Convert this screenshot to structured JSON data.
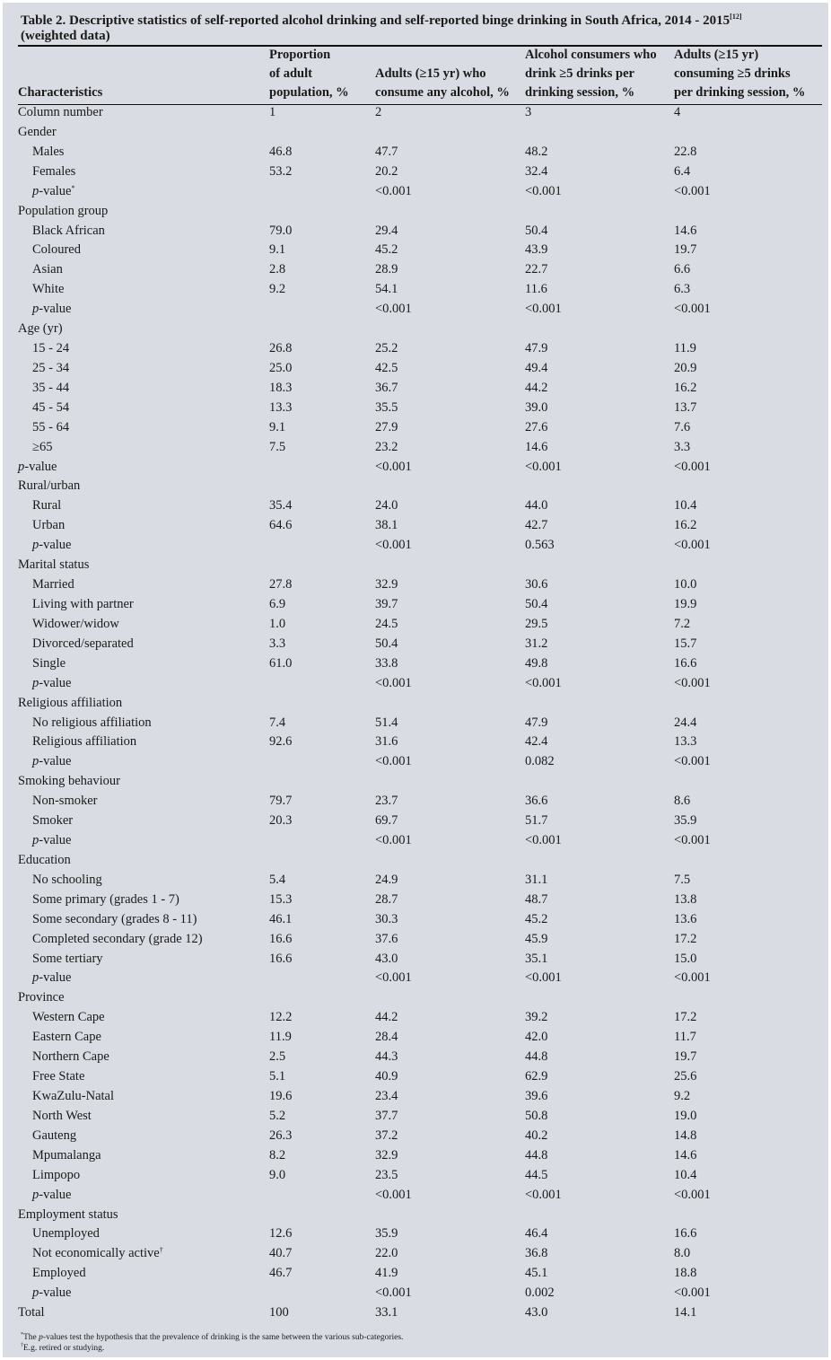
{
  "title": {
    "text": "Table 2. Descriptive statistics of self-reported alcohol drinking and self-reported binge drinking in South Africa, 2014 - 2015",
    "ref": "[12]",
    "line2": "(weighted data)"
  },
  "headers": {
    "characteristics": "Characteristics",
    "col1": [
      "Proportion",
      "of adult",
      "population, %"
    ],
    "col2": [
      "Adults (≥15 yr) who",
      "consume any alcohol, %"
    ],
    "col3": [
      "Alcohol consumers who",
      "drink ≥5 drinks per",
      "drinking session, %"
    ],
    "col4": [
      "Adults (≥15 yr)",
      "consuming ≥5 drinks",
      "per drinking session, %"
    ]
  },
  "rows": [
    {
      "label": "Column number",
      "v": [
        "1",
        "2",
        "3",
        "4"
      ]
    },
    {
      "label": "Gender",
      "v": [
        "",
        "",
        "",
        ""
      ]
    },
    {
      "label": "Males",
      "indent": true,
      "v": [
        "46.8",
        "47.7",
        "48.2",
        "22.8"
      ]
    },
    {
      "label": "Females",
      "indent": true,
      "v": [
        "53.2",
        "20.2",
        "32.4",
        "6.4"
      ]
    },
    {
      "label": "p-value",
      "sup": "*",
      "p": true,
      "indent": true,
      "v": [
        "",
        "<0.001",
        "<0.001",
        "<0.001"
      ]
    },
    {
      "label": "Population group",
      "v": [
        "",
        "",
        "",
        ""
      ]
    },
    {
      "label": "Black African",
      "indent": true,
      "v": [
        "79.0",
        "29.4",
        "50.4",
        "14.6"
      ]
    },
    {
      "label": "Coloured",
      "indent": true,
      "v": [
        "9.1",
        "45.2",
        "43.9",
        "19.7"
      ]
    },
    {
      "label": "Asian",
      "indent": true,
      "v": [
        "2.8",
        "28.9",
        "22.7",
        "6.6"
      ]
    },
    {
      "label": "White",
      "indent": true,
      "v": [
        "9.2",
        "54.1",
        "11.6",
        "6.3"
      ]
    },
    {
      "label": "p-value",
      "p": true,
      "indent": true,
      "v": [
        "",
        "<0.001",
        "<0.001",
        "<0.001"
      ]
    },
    {
      "label": "Age (yr)",
      "v": [
        "",
        "",
        "",
        ""
      ]
    },
    {
      "label": "15 - 24",
      "indent": true,
      "v": [
        "26.8",
        "25.2",
        "47.9",
        "11.9"
      ]
    },
    {
      "label": "25 - 34",
      "indent": true,
      "v": [
        "25.0",
        "42.5",
        "49.4",
        "20.9"
      ]
    },
    {
      "label": "35 - 44",
      "indent": true,
      "v": [
        "18.3",
        "36.7",
        "44.2",
        "16.2"
      ]
    },
    {
      "label": "45 - 54",
      "indent": true,
      "v": [
        "13.3",
        "35.5",
        "39.0",
        "13.7"
      ]
    },
    {
      "label": "55 - 64",
      "indent": true,
      "v": [
        "9.1",
        "27.9",
        "27.6",
        "7.6"
      ]
    },
    {
      "label": "≥65",
      "indent": true,
      "v": [
        "7.5",
        "23.2",
        "14.6",
        "3.3"
      ]
    },
    {
      "label": "p-value",
      "p": true,
      "v": [
        "",
        "<0.001",
        "<0.001",
        "<0.001"
      ]
    },
    {
      "label": "Rural/urban",
      "v": [
        "",
        "",
        "",
        ""
      ]
    },
    {
      "label": "Rural",
      "indent": true,
      "v": [
        "35.4",
        "24.0",
        "44.0",
        "10.4"
      ]
    },
    {
      "label": "Urban",
      "indent": true,
      "v": [
        "64.6",
        "38.1",
        "42.7",
        "16.2"
      ]
    },
    {
      "label": "p-value",
      "p": true,
      "indent": true,
      "v": [
        "",
        "<0.001",
        "0.563",
        "<0.001"
      ]
    },
    {
      "label": "Marital status",
      "v": [
        "",
        "",
        "",
        ""
      ]
    },
    {
      "label": "Married",
      "indent": true,
      "v": [
        "27.8",
        "32.9",
        "30.6",
        "10.0"
      ]
    },
    {
      "label": "Living with partner",
      "indent": true,
      "v": [
        "6.9",
        "39.7",
        "50.4",
        "19.9"
      ]
    },
    {
      "label": "Widower/widow",
      "indent": true,
      "v": [
        "1.0",
        "24.5",
        "29.5",
        "7.2"
      ]
    },
    {
      "label": "Divorced/separated",
      "indent": true,
      "v": [
        "3.3",
        "50.4",
        "31.2",
        "15.7"
      ]
    },
    {
      "label": "Single",
      "indent": true,
      "v": [
        "61.0",
        "33.8",
        "49.8",
        "16.6"
      ]
    },
    {
      "label": "p-value",
      "p": true,
      "indent": true,
      "v": [
        "",
        "<0.001",
        "<0.001",
        "<0.001"
      ]
    },
    {
      "label": "Religious affiliation",
      "v": [
        "",
        "",
        "",
        ""
      ]
    },
    {
      "label": "No religious affiliation",
      "indent": true,
      "v": [
        "7.4",
        "51.4",
        "47.9",
        "24.4"
      ]
    },
    {
      "label": "Religious affiliation",
      "indent": true,
      "v": [
        "92.6",
        "31.6",
        "42.4",
        "13.3"
      ]
    },
    {
      "label": "p-value",
      "p": true,
      "indent": true,
      "v": [
        "",
        "<0.001",
        "0.082",
        "<0.001"
      ]
    },
    {
      "label": "Smoking behaviour",
      "v": [
        "",
        "",
        "",
        ""
      ]
    },
    {
      "label": "Non-smoker",
      "indent": true,
      "v": [
        "79.7",
        "23.7",
        "36.6",
        "8.6"
      ]
    },
    {
      "label": "Smoker",
      "indent": true,
      "v": [
        "20.3",
        "69.7",
        "51.7",
        "35.9"
      ]
    },
    {
      "label": "p-value",
      "p": true,
      "indent": true,
      "v": [
        "",
        "<0.001",
        "<0.001",
        "<0.001"
      ]
    },
    {
      "label": "Education",
      "v": [
        "",
        "",
        "",
        ""
      ]
    },
    {
      "label": "No schooling",
      "indent": true,
      "v": [
        "5.4",
        "24.9",
        "31.1",
        "7.5"
      ]
    },
    {
      "label": "Some primary (grades 1 - 7)",
      "indent": true,
      "v": [
        "15.3",
        "28.7",
        "48.7",
        "13.8"
      ]
    },
    {
      "label": "Some secondary (grades 8 - 11)",
      "indent": true,
      "v": [
        "46.1",
        "30.3",
        "45.2",
        "13.6"
      ]
    },
    {
      "label": "Completed secondary (grade 12)",
      "indent": true,
      "v": [
        "16.6",
        "37.6",
        "45.9",
        "17.2"
      ]
    },
    {
      "label": "Some tertiary",
      "indent": true,
      "v": [
        "16.6",
        "43.0",
        "35.1",
        "15.0"
      ]
    },
    {
      "label": "p-value",
      "p": true,
      "indent": true,
      "v": [
        "",
        "<0.001",
        "<0.001",
        "<0.001"
      ]
    },
    {
      "label": "Province",
      "v": [
        "",
        "",
        "",
        ""
      ]
    },
    {
      "label": "Western Cape",
      "indent": true,
      "v": [
        "12.2",
        "44.2",
        "39.2",
        "17.2"
      ]
    },
    {
      "label": "Eastern Cape",
      "indent": true,
      "v": [
        "11.9",
        "28.4",
        "42.0",
        "11.7"
      ]
    },
    {
      "label": "Northern Cape",
      "indent": true,
      "v": [
        "2.5",
        "44.3",
        "44.8",
        "19.7"
      ]
    },
    {
      "label": "Free State",
      "indent": true,
      "v": [
        "5.1",
        "40.9",
        "62.9",
        "25.6"
      ]
    },
    {
      "label": "KwaZulu-Natal",
      "indent": true,
      "v": [
        "19.6",
        "23.4",
        "39.6",
        "9.2"
      ]
    },
    {
      "label": "North West",
      "indent": true,
      "v": [
        "5.2",
        "37.7",
        "50.8",
        "19.0"
      ]
    },
    {
      "label": "Gauteng",
      "indent": true,
      "v": [
        "26.3",
        "37.2",
        "40.2",
        "14.8"
      ]
    },
    {
      "label": "Mpumalanga",
      "indent": true,
      "v": [
        "8.2",
        "32.9",
        "44.8",
        "14.6"
      ]
    },
    {
      "label": "Limpopo",
      "indent": true,
      "v": [
        "9.0",
        "23.5",
        "44.5",
        "10.4"
      ]
    },
    {
      "label": "p-value",
      "p": true,
      "indent": true,
      "v": [
        "",
        "<0.001",
        "<0.001",
        "<0.001"
      ]
    },
    {
      "label": "Employment status",
      "v": [
        "",
        "",
        "",
        ""
      ]
    },
    {
      "label": "Unemployed",
      "indent": true,
      "v": [
        "12.6",
        "35.9",
        "46.4",
        "16.6"
      ]
    },
    {
      "label": "Not economically active",
      "sup": "†",
      "indent": true,
      "v": [
        "40.7",
        "22.0",
        "36.8",
        "8.0"
      ]
    },
    {
      "label": "Employed",
      "indent": true,
      "v": [
        "46.7",
        "41.9",
        "45.1",
        "18.8"
      ]
    },
    {
      "label": "p-value",
      "p": true,
      "indent": true,
      "v": [
        "",
        "<0.001",
        "0.002",
        "<0.001"
      ]
    },
    {
      "label": "Total",
      "v": [
        "100",
        "33.1",
        "43.0",
        "14.1"
      ]
    }
  ],
  "footnotes": {
    "note1_mark": "*",
    "note1_p": "p",
    "note1_text": "-values test the hypothesis that the prevalence of drinking is the same between the various sub-categories.",
    "note1_pre": "The ",
    "note2_mark": "†",
    "note2_text": "E.g. retired or studying."
  }
}
